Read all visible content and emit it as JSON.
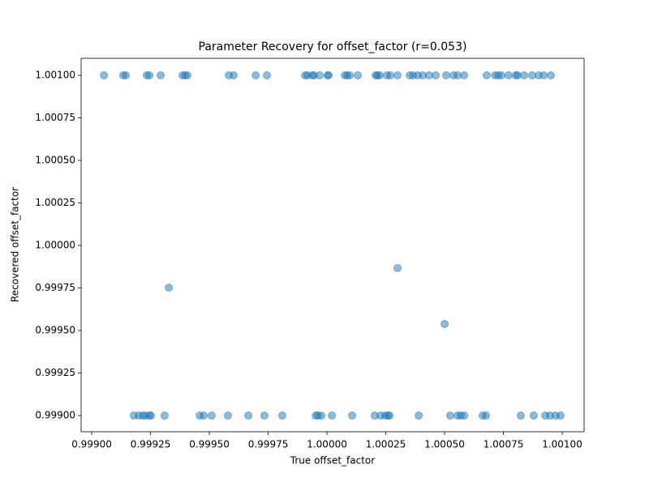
{
  "chart_data": {
    "type": "scatter",
    "title": "Parameter Recovery for offset_factor (r=0.053)",
    "x_label": "True offset_factor",
    "y_label": "Recovered offset_factor",
    "color": "#1f77b4",
    "x": [
      0.999052,
      0.999134,
      0.999145,
      0.999234,
      0.999245,
      0.999293,
      0.999386,
      0.999397,
      0.999407,
      0.999583,
      0.999603,
      0.999697,
      0.999745,
      0.999907,
      0.999917,
      0.999938,
      0.999945,
      0.999969,
      1.000003,
      1.000007,
      1.000076,
      1.000086,
      1.000097,
      1.000131,
      1.000207,
      1.000214,
      1.000224,
      1.000255,
      1.000269,
      1.0003,
      1.000352,
      1.000366,
      1.000386,
      1.000407,
      1.000434,
      1.000462,
      1.000507,
      1.000538,
      1.000555,
      1.000583,
      1.000679,
      1.000714,
      1.000728,
      1.000741,
      1.000772,
      1.000803,
      1.00081,
      1.000838,
      1.000872,
      1.0009,
      1.000921,
      1.000952,
      0.999179,
      0.9992,
      0.999217,
      0.999228,
      0.999245,
      0.999252,
      0.99931,
      0.999459,
      0.999476,
      0.99951,
      0.999579,
      0.999666,
      0.999734,
      0.99981,
      0.999952,
      0.999962,
      0.999976,
      1.000021,
      1.000107,
      1.000203,
      1.000228,
      1.000248,
      1.000259,
      1.000266,
      1.00039,
      1.000524,
      1.000555,
      1.000569,
      1.000583,
      1.000662,
      1.000676,
      1.000824,
      1.000879,
      1.000928,
      1.000948,
      1.000972,
      1.000993,
      0.999328,
      1.0003,
      1.0005
    ],
    "y": [
      1.001,
      1.001,
      1.001,
      1.001,
      1.001,
      1.001,
      1.001,
      1.001,
      1.001,
      1.001,
      1.001,
      1.001,
      1.001,
      1.001,
      1.001,
      1.001,
      1.001,
      1.001,
      1.001,
      1.001,
      1.001,
      1.001,
      1.001,
      1.001,
      1.001,
      1.001,
      1.001,
      1.001,
      1.001,
      1.001,
      1.001,
      1.001,
      1.001,
      1.001,
      1.001,
      1.001,
      1.001,
      1.001,
      1.001,
      1.001,
      1.001,
      1.001,
      1.001,
      1.001,
      1.001,
      1.001,
      1.001,
      1.001,
      1.001,
      1.001,
      1.001,
      1.001,
      0.999,
      0.999,
      0.999,
      0.999,
      0.999,
      0.999,
      0.999,
      0.999,
      0.999,
      0.999,
      0.999,
      0.999,
      0.999,
      0.999,
      0.999,
      0.999,
      0.999,
      0.999,
      0.999,
      0.999,
      0.999,
      0.999,
      0.999,
      0.999,
      0.999,
      0.999,
      0.999,
      0.999,
      0.999,
      0.999,
      0.999,
      0.999,
      0.999,
      0.999,
      0.999,
      0.999,
      0.999,
      0.999752,
      0.999867,
      0.999538
    ],
    "xlim": [
      0.998955,
      1.001093
    ],
    "ylim": [
      0.998905,
      1.0011
    ],
    "xticks": [
      {
        "value": 0.999,
        "label": "0.99900"
      },
      {
        "value": 0.99925,
        "label": "0.99925"
      },
      {
        "value": 0.9995,
        "label": "0.99950"
      },
      {
        "value": 0.99975,
        "label": "0.99975"
      },
      {
        "value": 1.0,
        "label": "1.00000"
      },
      {
        "value": 1.00025,
        "label": "1.00025"
      },
      {
        "value": 1.0005,
        "label": "1.00050"
      },
      {
        "value": 1.00075,
        "label": "1.00075"
      },
      {
        "value": 1.001,
        "label": "1.00100"
      }
    ],
    "yticks": [
      {
        "value": 0.999,
        "label": "0.99900"
      },
      {
        "value": 0.99925,
        "label": "0.99925"
      },
      {
        "value": 0.9995,
        "label": "0.99950"
      },
      {
        "value": 0.99975,
        "label": "0.99975"
      },
      {
        "value": 1.0,
        "label": "1.00000"
      },
      {
        "value": 1.00025,
        "label": "1.00025"
      },
      {
        "value": 1.0005,
        "label": "1.00050"
      },
      {
        "value": 1.00075,
        "label": "1.00075"
      },
      {
        "value": 1.001,
        "label": "1.00100"
      }
    ],
    "grid": false
  }
}
